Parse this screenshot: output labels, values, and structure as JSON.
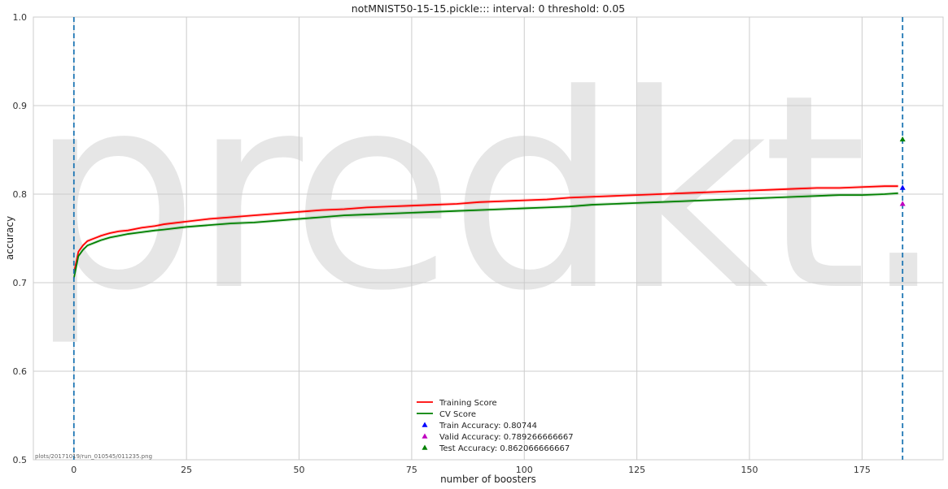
{
  "chart_data": {
    "type": "line",
    "title": "notMNIST50-15-15.pickle::: interval: 0 threshold: 0.05",
    "xlabel": "number of boosters",
    "ylabel": "accuracy",
    "xlim": [
      -9,
      193
    ],
    "ylim": [
      0.5,
      1.0
    ],
    "xticks": [
      0,
      25,
      50,
      75,
      100,
      125,
      150,
      175
    ],
    "yticks": [
      0.5,
      0.6,
      0.7,
      0.8,
      0.9,
      1.0
    ],
    "grid": true,
    "watermark": "predkt.io",
    "footnote": "plots/20171019/run_010545/011235.png",
    "vlines": [
      0,
      184
    ],
    "series": [
      {
        "name": "Training Score",
        "color": "#ff0000",
        "x": [
          0,
          1,
          2,
          3,
          4,
          5,
          6,
          8,
          10,
          12,
          15,
          18,
          20,
          25,
          30,
          35,
          40,
          45,
          50,
          55,
          60,
          65,
          70,
          75,
          80,
          85,
          90,
          95,
          100,
          105,
          110,
          115,
          120,
          125,
          130,
          135,
          140,
          145,
          150,
          155,
          160,
          165,
          170,
          175,
          180,
          183
        ],
        "values": [
          0.711,
          0.735,
          0.742,
          0.747,
          0.749,
          0.751,
          0.753,
          0.756,
          0.758,
          0.759,
          0.762,
          0.764,
          0.766,
          0.769,
          0.772,
          0.774,
          0.776,
          0.778,
          0.78,
          0.782,
          0.783,
          0.785,
          0.786,
          0.787,
          0.788,
          0.789,
          0.791,
          0.792,
          0.793,
          0.794,
          0.796,
          0.797,
          0.798,
          0.799,
          0.8,
          0.801,
          0.802,
          0.803,
          0.804,
          0.805,
          0.806,
          0.807,
          0.807,
          0.808,
          0.809,
          0.809
        ]
      },
      {
        "name": "CV Score",
        "color": "#008000",
        "x": [
          0,
          1,
          2,
          3,
          4,
          5,
          6,
          8,
          10,
          12,
          15,
          18,
          20,
          25,
          30,
          35,
          40,
          45,
          50,
          55,
          60,
          65,
          70,
          75,
          80,
          85,
          90,
          95,
          100,
          105,
          110,
          115,
          120,
          125,
          130,
          135,
          140,
          145,
          150,
          155,
          160,
          165,
          170,
          175,
          180,
          183
        ],
        "values": [
          0.705,
          0.73,
          0.737,
          0.742,
          0.744,
          0.746,
          0.748,
          0.751,
          0.753,
          0.755,
          0.757,
          0.759,
          0.76,
          0.763,
          0.765,
          0.767,
          0.768,
          0.77,
          0.772,
          0.774,
          0.776,
          0.777,
          0.778,
          0.779,
          0.78,
          0.781,
          0.782,
          0.783,
          0.784,
          0.785,
          0.786,
          0.788,
          0.789,
          0.79,
          0.791,
          0.792,
          0.793,
          0.794,
          0.795,
          0.796,
          0.797,
          0.798,
          0.799,
          0.799,
          0.8,
          0.801
        ]
      }
    ],
    "points": [
      {
        "label": "Train Accuracy: 0.80744",
        "x": 184,
        "y": 0.80744,
        "color": "#0000ff"
      },
      {
        "label": "Valid Accuracy: 0.789266666667",
        "x": 184,
        "y": 0.789266666667,
        "color": "#bf00bf"
      },
      {
        "label": "Test Accuracy: 0.862066666667",
        "x": 184,
        "y": 0.862066666667,
        "color": "#008000"
      }
    ],
    "legend_position": "lower center"
  }
}
